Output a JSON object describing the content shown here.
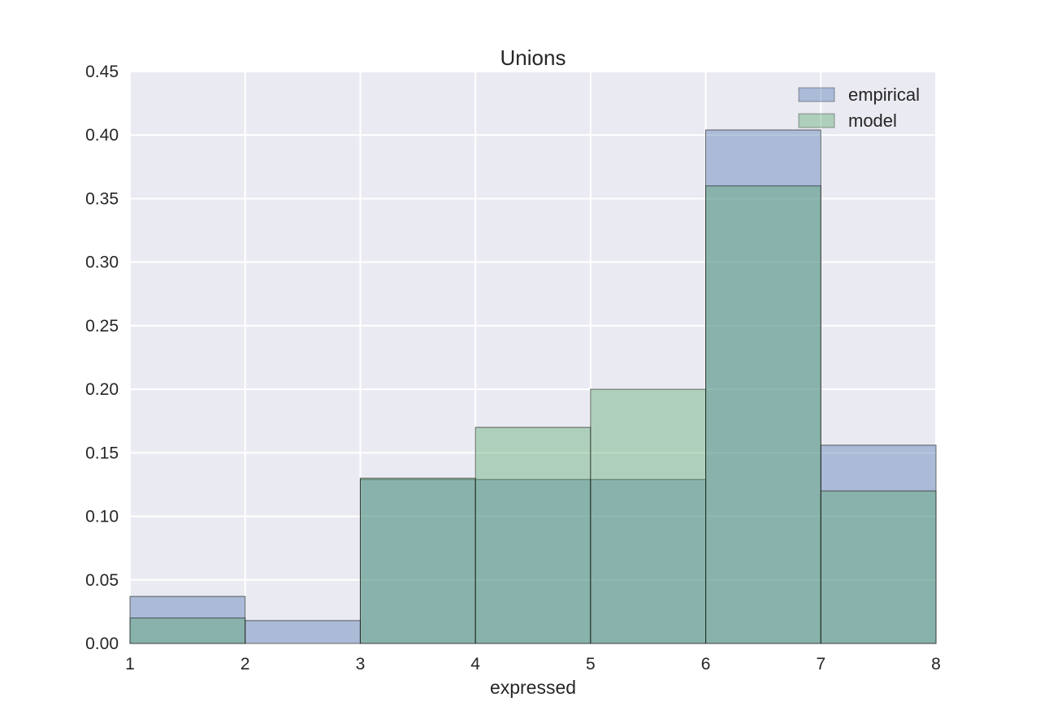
{
  "chart_data": {
    "type": "bar",
    "title": "Unions",
    "xlabel": "expressed",
    "ylabel": "",
    "xlim": [
      1,
      8
    ],
    "ylim": [
      0,
      0.45
    ],
    "x_ticks": [
      "1",
      "2",
      "3",
      "4",
      "5",
      "6",
      "7",
      "8"
    ],
    "y_ticks": [
      "0.00",
      "0.05",
      "0.10",
      "0.15",
      "0.20",
      "0.25",
      "0.30",
      "0.35",
      "0.40",
      "0.45"
    ],
    "bin_edges": [
      1,
      2,
      3,
      4,
      5,
      6,
      7,
      8
    ],
    "series": [
      {
        "name": "empirical",
        "color": "#4c72b0",
        "values": [
          0.037,
          0.018,
          0.129,
          0.129,
          0.129,
          0.404,
          0.156
        ]
      },
      {
        "name": "model",
        "color": "#55a868",
        "values": [
          0.02,
          0.0,
          0.13,
          0.17,
          0.2,
          0.36,
          0.12
        ]
      }
    ],
    "grid": true,
    "legend_position": "top-right",
    "background_color": "#eaeaf2"
  }
}
